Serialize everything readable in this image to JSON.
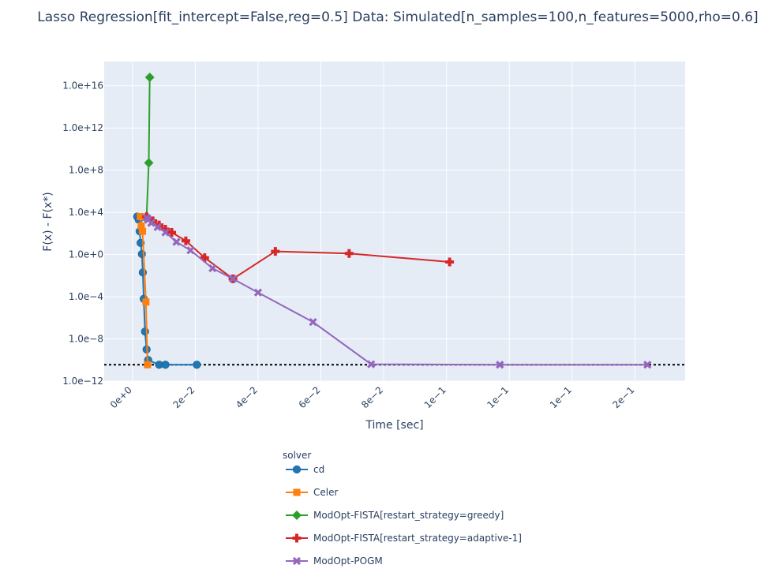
{
  "chart_data": {
    "type": "line",
    "title": "Lasso Regression[fit_intercept=False,reg=0.5] Data: Simulated[n_samples=100,n_features=5000,rho=0.6]",
    "xlabel": "Time [sec]",
    "ylabel": "F(x) - F(x*)",
    "x_scale": "linear",
    "y_scale": "log",
    "xlim": [
      -0.009,
      0.176
    ],
    "ylim_log10": [
      -12,
      18.3
    ],
    "x_ticks": [
      {
        "value": 0,
        "label": "0e+0"
      },
      {
        "value": 0.02,
        "label": "2e−2"
      },
      {
        "value": 0.04,
        "label": "4e−2"
      },
      {
        "value": 0.06,
        "label": "6e−2"
      },
      {
        "value": 0.08,
        "label": "8e−2"
      },
      {
        "value": 0.1,
        "label": "1e−1"
      },
      {
        "value": 0.12,
        "label": "1e−1"
      },
      {
        "value": 0.14,
        "label": "1e−1"
      },
      {
        "value": 0.16,
        "label": "2e−1"
      }
    ],
    "y_ticks": [
      {
        "log": 16,
        "label": "1.0e+16"
      },
      {
        "log": 12,
        "label": "1.0e+12"
      },
      {
        "log": 8,
        "label": "1.0e+8"
      },
      {
        "log": 4,
        "label": "1.0e+4"
      },
      {
        "log": 0,
        "label": "1.0e+0"
      },
      {
        "log": -4,
        "label": "1.0e−4"
      },
      {
        "log": -8,
        "label": "1.0e−8"
      },
      {
        "log": -12,
        "label": "1.0e−12"
      }
    ],
    "reference_line_log10": -10.45,
    "legend_title": "solver",
    "series": [
      {
        "name": "cd",
        "color": "#1f77b4",
        "marker": "circle",
        "x": [
          0.0015,
          0.002,
          0.0023,
          0.0026,
          0.003,
          0.0033,
          0.0036,
          0.004,
          0.0045,
          0.005,
          0.0085,
          0.0105,
          0.0205
        ],
        "log_y": [
          3.6,
          3.3,
          2.2,
          1.1,
          0.05,
          -1.7,
          -4.2,
          -7.3,
          -9.0,
          -10.0,
          -10.45,
          -10.45,
          -10.45
        ]
      },
      {
        "name": "Celer",
        "color": "#ff7f0e",
        "marker": "square",
        "x": [
          0.0025,
          0.0028,
          0.0032,
          0.0043,
          0.0048
        ],
        "log_y": [
          3.6,
          2.7,
          2.2,
          -4.5,
          -10.45
        ]
      },
      {
        "name": "ModOpt-FISTA[restart_strategy=greedy]",
        "color": "#2ca02c",
        "marker": "diamond",
        "x": [
          0.0045,
          0.0052,
          0.0055
        ],
        "log_y": [
          3.6,
          8.7,
          16.8
        ]
      },
      {
        "name": "ModOpt-FISTA[restart_strategy=adaptive-1]",
        "color": "#d62728",
        "marker": "cross",
        "x": [
          0.0045,
          0.0065,
          0.0085,
          0.0105,
          0.0125,
          0.017,
          0.023,
          0.032,
          0.0455,
          0.069,
          0.101
        ],
        "log_y": [
          3.6,
          3.2,
          2.8,
          2.4,
          2.1,
          1.3,
          -0.3,
          -2.3,
          0.3,
          0.1,
          -0.7
        ]
      },
      {
        "name": "ModOpt-POGM",
        "color": "#9467bd",
        "marker": "x",
        "x": [
          0.0045,
          0.005,
          0.006,
          0.008,
          0.0105,
          0.014,
          0.0185,
          0.0255,
          0.032,
          0.04,
          0.0575,
          0.076,
          0.117,
          0.164
        ],
        "log_y": [
          3.5,
          3.3,
          3.0,
          2.6,
          2.1,
          1.2,
          0.4,
          -1.3,
          -2.3,
          -3.6,
          -6.4,
          -10.4,
          -10.45,
          -10.45
        ]
      }
    ]
  }
}
